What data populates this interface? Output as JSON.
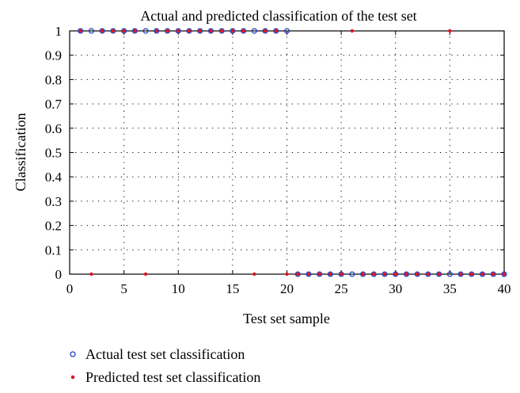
{
  "chart_data": {
    "type": "scatter",
    "title": "Actual and predicted classification of the test set",
    "xlabel": "Test set sample",
    "ylabel": "Classification",
    "xlim": [
      0,
      40
    ],
    "ylim": [
      0,
      1
    ],
    "xticks": [
      "0",
      "5",
      "10",
      "15",
      "20",
      "25",
      "30",
      "35",
      "40"
    ],
    "yticks": [
      "0",
      "0.1",
      "0.2",
      "0.3",
      "0.4",
      "0.5",
      "0.6",
      "0.7",
      "0.8",
      "0.9",
      "1"
    ],
    "grid": true,
    "legend_placement": "bottom-left",
    "series": [
      {
        "name": "Actual test set classification",
        "marker": "hollow-circle",
        "color": "#1f3fbf",
        "x": [
          1,
          2,
          3,
          4,
          5,
          6,
          7,
          8,
          9,
          10,
          11,
          12,
          13,
          14,
          15,
          16,
          17,
          18,
          19,
          20,
          21,
          22,
          23,
          24,
          25,
          26,
          27,
          28,
          29,
          30,
          31,
          32,
          33,
          34,
          35,
          36,
          37,
          38,
          39,
          40
        ],
        "y": [
          1,
          1,
          1,
          1,
          1,
          1,
          1,
          1,
          1,
          1,
          1,
          1,
          1,
          1,
          1,
          1,
          1,
          1,
          1,
          1,
          0,
          0,
          0,
          0,
          0,
          0,
          0,
          0,
          0,
          0,
          0,
          0,
          0,
          0,
          0,
          0,
          0,
          0,
          0,
          0
        ]
      },
      {
        "name": "Predicted test set classification",
        "marker": "dot",
        "color": "#e0141e",
        "x": [
          1,
          2,
          3,
          4,
          5,
          6,
          7,
          8,
          9,
          10,
          11,
          12,
          13,
          14,
          15,
          16,
          17,
          18,
          19,
          20,
          21,
          22,
          23,
          24,
          25,
          26,
          27,
          28,
          29,
          30,
          31,
          32,
          33,
          34,
          35,
          36,
          37,
          38,
          39,
          40
        ],
        "y": [
          1,
          0,
          1,
          1,
          1,
          1,
          0,
          1,
          1,
          1,
          1,
          1,
          1,
          1,
          1,
          1,
          0,
          1,
          1,
          0,
          0,
          0,
          0,
          0,
          0,
          1,
          0,
          0,
          0,
          0,
          0,
          0,
          0,
          0,
          1,
          0,
          0,
          0,
          0,
          0
        ]
      }
    ]
  }
}
